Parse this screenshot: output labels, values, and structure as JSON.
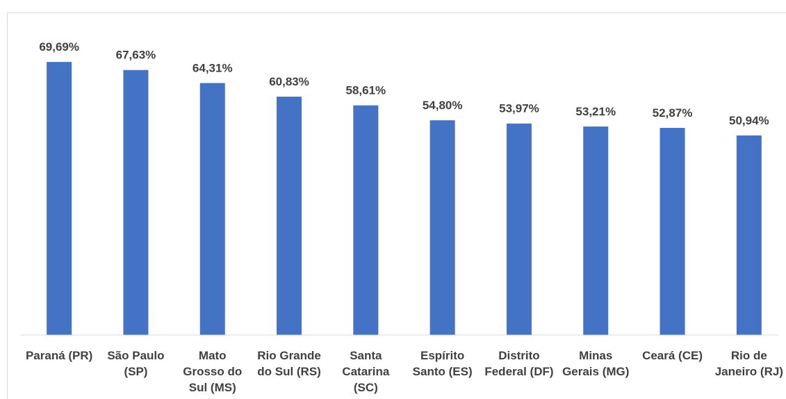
{
  "chart_data": {
    "type": "bar",
    "categories": [
      "Paraná (PR)",
      "São Paulo\n(SP)",
      "Mato\nGrosso do\nSul (MS)",
      "Rio Grande\ndo Sul (RS)",
      "Santa\nCatarina\n(SC)",
      "Espírito\nSanto (ES)",
      "Distrito\nFederal (DF)",
      "Minas\nGerais (MG)",
      "Ceará (CE)",
      "Rio de\nJaneiro (RJ)"
    ],
    "values": [
      69.69,
      67.63,
      64.31,
      60.83,
      58.61,
      54.8,
      53.97,
      53.21,
      52.87,
      50.94
    ],
    "value_labels": [
      "69,69%",
      "67,63%",
      "64,31%",
      "60,83%",
      "58,61%",
      "54,80%",
      "53,97%",
      "53,21%",
      "52,87%",
      "50,94%"
    ],
    "color": "#4472c4",
    "ylim": [
      0,
      80
    ]
  }
}
